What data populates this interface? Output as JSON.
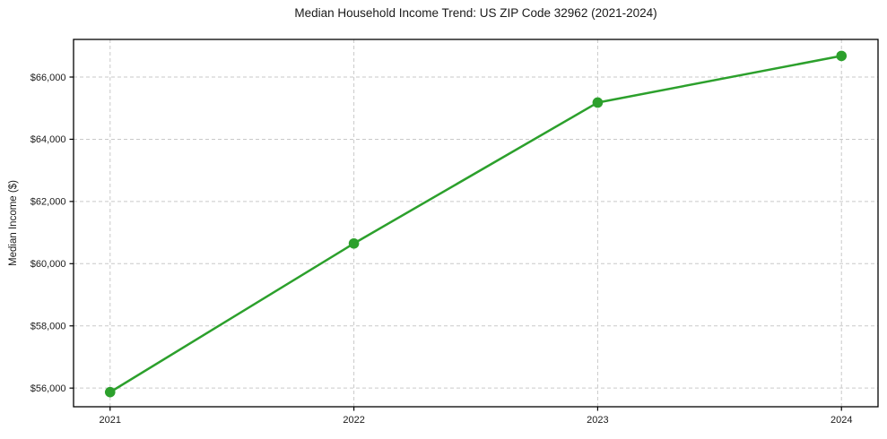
{
  "chart_data": {
    "type": "line",
    "title": "Median Household Income Trend: US ZIP Code 32962 (2021-2024)",
    "xlabel": "",
    "ylabel": "Median Income ($)",
    "x": [
      2021,
      2022,
      2023,
      2024
    ],
    "x_tick_labels": [
      "2021",
      "2022",
      "2023",
      "2024"
    ],
    "values": [
      55870,
      60650,
      65180,
      66680
    ],
    "y_ticks": [
      56000,
      58000,
      60000,
      62000,
      64000,
      66000
    ],
    "y_tick_labels": [
      "$56,000",
      "$58,000",
      "$60,000",
      "$62,000",
      "$64,000",
      "$66,000"
    ],
    "xlim": [
      2020.85,
      2024.15
    ],
    "ylim": [
      55400,
      67210
    ],
    "grid": true,
    "grid_line_style": "dashed",
    "legend": false,
    "line_color": "#2ca02c",
    "marker_color": "#2ca02c",
    "marker": "circle",
    "grid_color": "#c9c9c9",
    "spine_color": "#000000",
    "text_color": "#1a1a1a",
    "background_color": "#ffffff"
  }
}
